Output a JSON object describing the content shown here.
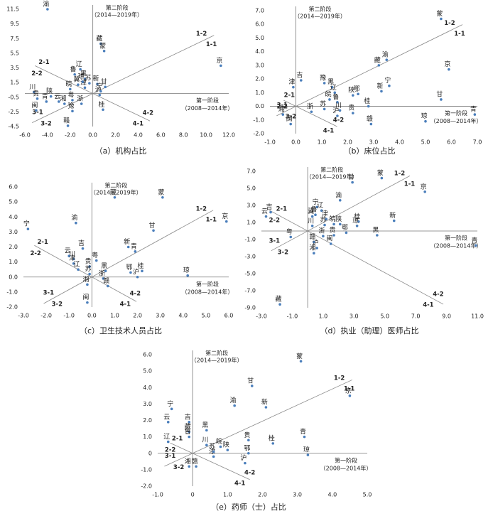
{
  "chart_data": [
    {
      "type": "scatter",
      "caption": "（a）机构占比",
      "xlabel": "第一阶段",
      "xlabel_note": "（2008—2014年）",
      "ylabel": "第二阶段",
      "ylabel_note": "（2014—2019年）",
      "region_labels": [
        "1-1",
        "1-2",
        "2-1",
        "2-2",
        "3-1",
        "3-2",
        "4-1",
        "4-2"
      ],
      "color": "#4a7ebb",
      "labels": [
        "渝",
        "藏",
        "蒙",
        "京",
        "辽",
        "鲁",
        "黑",
        "苏",
        "新",
        "冀",
        "皖",
        "津",
        "甘",
        "宁",
        "沪",
        "川",
        "贵",
        "陕",
        "云",
        "湘",
        "闽",
        "粤",
        "浙",
        "青",
        "豫",
        "桂",
        "赣",
        "琼"
      ],
      "x": [
        -4.0,
        0.7,
        1.0,
        11.3,
        -1.1,
        -1.6,
        -0.7,
        -0.3,
        0.4,
        -1.3,
        -2.0,
        -0.7,
        1.1,
        0.7,
        0.6,
        -5.2,
        -4.9,
        -3.7,
        -3.0,
        -2.5,
        -5.0,
        -1.8,
        -1.0,
        -4.1,
        -1.8,
        0.9,
        -2.2,
        -0.9
      ],
      "y": [
        11.5,
        6.8,
        5.8,
        3.8,
        3.3,
        2.6,
        2.0,
        1.4,
        1.3,
        1.2,
        0.6,
        0.8,
        0.9,
        0.3,
        -0.2,
        0.2,
        -0.7,
        -0.4,
        -1.1,
        -1.4,
        -2.3,
        -0.9,
        -1.4,
        -1.1,
        -2.4,
        -2.2,
        -4.4,
        1.6
      ],
      "xlim": [
        -6,
        12
      ],
      "ylim": [
        -4.5,
        11.5
      ],
      "xticks": [
        {
          "value": -6,
          "label": "-6.0"
        },
        {
          "value": -4,
          "label": "-4.0"
        },
        {
          "value": -2,
          "label": "-2.0"
        },
        {
          "value": 0,
          "label": "0.0"
        },
        {
          "value": 2,
          "label": "2.0"
        },
        {
          "value": 4,
          "label": "4.0"
        },
        {
          "value": 6,
          "label": "6.0"
        },
        {
          "value": 8,
          "label": "8.0"
        },
        {
          "value": 10,
          "label": "10.0"
        },
        {
          "value": 12,
          "label": "12.0"
        }
      ],
      "yticks": [
        -4.5,
        -2.5,
        -0.5,
        1.5,
        3.5,
        5.5,
        7.5,
        9.5,
        11.5
      ]
    },
    {
      "type": "scatter",
      "caption": "（b）床位占比",
      "xlabel": "第一阶段",
      "xlabel_note": "（2008—2014年）",
      "ylabel": "第二阶段",
      "ylabel_note": "（2014—2019年）",
      "region_labels": [
        "1-1",
        "1-2",
        "2-1",
        "2-2",
        "3-1",
        "3-2",
        "4-1",
        "4-2"
      ],
      "color": "#4a7ebb",
      "labels": [
        "蒙",
        "京",
        "渝",
        "藏",
        "宁",
        "新",
        "吉",
        "津",
        "黑",
        "豫",
        "辽",
        "鲁",
        "皖",
        "鄂",
        "陕",
        "苏",
        "湘",
        "闽",
        "甘",
        "桂",
        "青",
        "琼",
        "赣",
        "贵",
        "沪",
        "川",
        "浙"
      ],
      "x": [
        5.6,
        5.9,
        3.5,
        3.2,
        3.6,
        3.3,
        0.2,
        -0.1,
        1.4,
        1.1,
        1.5,
        1.6,
        1.3,
        2.4,
        2.2,
        1.1,
        -0.5,
        -0.2,
        5.6,
        2.8,
        6.9,
        5.0,
        2.9,
        2.2,
        1.6,
        1.7,
        0.6
      ],
      "y": [
        6.4,
        2.7,
        3.4,
        3.0,
        1.5,
        1.1,
        1.9,
        1.4,
        1.4,
        1.7,
        1.0,
        0.3,
        0.5,
        0.9,
        0.8,
        -0.2,
        -0.6,
        -1.3,
        0.5,
        0.0,
        -0.6,
        -1.1,
        -1.3,
        -0.5,
        -0.7,
        -0.3,
        -0.4
      ],
      "xlim": [
        -1,
        7
      ],
      "ylim": [
        -2,
        7
      ],
      "xticks": [
        {
          "value": -1,
          "label": "-1.0"
        },
        {
          "value": 0,
          "label": "0.0"
        },
        {
          "value": 1,
          "label": "1.0"
        },
        {
          "value": 2,
          "label": "2.0"
        },
        {
          "value": 3,
          "label": "3.0"
        },
        {
          "value": 4,
          "label": "4.0"
        },
        {
          "value": 5,
          "label": "5.0"
        },
        {
          "value": 6,
          "label": "6.0"
        },
        {
          "value": 7,
          "label": "7.0"
        }
      ],
      "yticks": [
        {
          "value": -2,
          "label": "-2.0"
        },
        {
          "value": -1,
          "label": "-1.0"
        },
        {
          "value": 0,
          "label": "0.0"
        },
        {
          "value": 1,
          "label": "1.0"
        },
        {
          "value": 2,
          "label": "2.0"
        },
        {
          "value": 3,
          "label": "3.0"
        },
        {
          "value": 4,
          "label": "4.0"
        },
        {
          "value": 5,
          "label": "5.0"
        },
        {
          "value": 6,
          "label": "6.0"
        },
        {
          "value": 7,
          "label": "7.0"
        }
      ]
    },
    {
      "type": "scatter",
      "caption": "（c）卫生技术人员占比",
      "xlabel": "第一阶段",
      "xlabel_note": "（2008—2014年）",
      "ylabel": "第二阶段",
      "ylabel_note": "（2014—2019年）",
      "region_labels": [
        "1-1",
        "1-2",
        "2-1",
        "2-2",
        "3-1",
        "3-2",
        "4-1",
        "4-2"
      ],
      "color": "#4a7ebb",
      "labels": [
        "藏",
        "蒙",
        "京",
        "甘",
        "渝",
        "宁",
        "新",
        "青",
        "吉",
        "川",
        "云",
        "津",
        "贵",
        "粤",
        "辽",
        "黑",
        "鄂",
        "桂",
        "沪",
        "琼",
        "苏",
        "湘",
        "闽",
        "浙",
        "赣"
      ],
      "x": [
        1.0,
        3.1,
        5.9,
        2.7,
        -0.7,
        -2.8,
        1.6,
        1.9,
        -0.4,
        -0.8,
        -1.0,
        -0.8,
        -0.1,
        0.2,
        -0.6,
        0.6,
        1.7,
        2.2,
        2.0,
        4.2,
        -0.1,
        -0.2,
        -0.2,
        0.5,
        0.7
      ],
      "y": [
        5.3,
        5.3,
        3.7,
        3.1,
        3.6,
        3.2,
        2.0,
        1.7,
        1.9,
        1.2,
        1.4,
        0.9,
        0.7,
        1.1,
        0.5,
        0.4,
        0.3,
        0.4,
        0.0,
        0.1,
        0.2,
        -0.5,
        -1.7,
        -0.1,
        -0.6
      ],
      "xlim": [
        -3,
        6
      ],
      "ylim": [
        -2,
        6
      ],
      "xticks": [
        {
          "value": -3,
          "label": "-3.0"
        },
        {
          "value": -2,
          "label": "-2.0"
        },
        {
          "value": -1,
          "label": "-1.0"
        },
        {
          "value": 0,
          "label": "0.0"
        },
        {
          "value": 1,
          "label": "1.0"
        },
        {
          "value": 2,
          "label": "2.0"
        },
        {
          "value": 3,
          "label": "3.0"
        },
        {
          "value": 4,
          "label": "4.0"
        },
        {
          "value": 5,
          "label": "5.0"
        },
        {
          "value": 6,
          "label": "6.0"
        }
      ],
      "yticks": [
        {
          "value": -2,
          "label": "-2.0"
        },
        {
          "value": -1,
          "label": "-1.0"
        },
        {
          "value": 0,
          "label": "0.0"
        },
        {
          "value": 1,
          "label": "1.0"
        },
        {
          "value": 2,
          "label": "2.0"
        },
        {
          "value": 3,
          "label": "3.0"
        },
        {
          "value": 4,
          "label": "4.0"
        },
        {
          "value": 5,
          "label": "5.0"
        },
        {
          "value": 6,
          "label": "6.0"
        }
      ]
    },
    {
      "type": "scatter",
      "caption": "（d）执业（助理）医师占比",
      "xlabel": "第一阶段",
      "xlabel_note": "（2008—2014年）",
      "ylabel": "第二阶段",
      "ylabel_note": "（2014—2019年）",
      "region_labels": [
        "1-1",
        "1-2",
        "2-1",
        "2-2",
        "3-1",
        "3-2",
        "4-1",
        "4-2"
      ],
      "color": "#4a7ebb",
      "labels": [
        "甘",
        "蒙",
        "京",
        "渝",
        "宁",
        "辽",
        "吉",
        "云",
        "鲁",
        "津",
        "皖",
        "陕",
        "桂",
        "川",
        "新",
        "黑",
        "青",
        "粤",
        "贵",
        "鄂",
        "赣",
        "沪",
        "湘",
        "闽",
        "藏",
        "苏",
        "浙",
        "冀",
        "琼"
      ],
      "x": [
        2.9,
        4.8,
        7.6,
        2.1,
        0.6,
        0.9,
        -2.4,
        -2.7,
        0.5,
        1.2,
        1.7,
        2.1,
        3.3,
        0.3,
        5.6,
        4.5,
        10.9,
        -1.1,
        1.7,
        2.5,
        0.4,
        0.6,
        0.4,
        1.5,
        -1.8,
        1.1,
        1.0,
        0.3,
        3.2
      ],
      "y": [
        5.7,
        6.2,
        4.6,
        3.6,
        2.8,
        2.4,
        2.2,
        1.7,
        1.9,
        1.4,
        0.8,
        0.8,
        1.1,
        0.6,
        1.2,
        -0.5,
        -1.7,
        -0.7,
        -0.5,
        -0.2,
        -1.3,
        -2.0,
        -2.6,
        -1.5,
        -8.6,
        0.7,
        -0.6,
        1.7,
        0.6
      ],
      "xlim": [
        -3,
        11
      ],
      "ylim": [
        -9,
        7
      ],
      "xticks": [
        {
          "value": -3,
          "label": "-3.0"
        },
        {
          "value": -1,
          "label": "-1.0"
        },
        {
          "value": 1,
          "label": "1.0"
        },
        {
          "value": 3,
          "label": "3.0"
        },
        {
          "value": 5,
          "label": "5.0"
        },
        {
          "value": 7,
          "label": "7.0"
        },
        {
          "value": 9,
          "label": "9.0"
        },
        {
          "value": 11,
          "label": "11.0"
        }
      ],
      "yticks": [
        {
          "value": -9,
          "label": "-9.0"
        },
        {
          "value": -7,
          "label": "-7.0"
        },
        {
          "value": -5,
          "label": "-5.0"
        },
        {
          "value": -3,
          "label": "-3.0"
        },
        {
          "value": -1,
          "label": "-1.0"
        },
        {
          "value": 1,
          "label": "1.0"
        },
        {
          "value": 3,
          "label": "3.0"
        },
        {
          "value": 5,
          "label": "5.0"
        },
        {
          "value": 7,
          "label": "7.0"
        }
      ]
    },
    {
      "type": "scatter",
      "caption": "（e）药师（士）占比",
      "xlabel": "第一阶段",
      "xlabel_note": "（2008—2014年）",
      "ylabel": "第二阶段",
      "ylabel_note": "（2014—2019年）",
      "region_labels": [
        "1-1",
        "1-2",
        "2-1",
        "2-2",
        "3-1",
        "3-2",
        "4-1",
        "4-2"
      ],
      "color": "#4a7ebb",
      "labels": [
        "蒙",
        "甘",
        "京",
        "渝",
        "新",
        "宁",
        "云",
        "吉",
        "黑",
        "藏",
        "青",
        "贵",
        "桂",
        "鲁",
        "辽",
        "皖",
        "陕",
        "川",
        "湘",
        "赣",
        "津",
        "苏",
        "鄂",
        "琼",
        "沪"
      ],
      "x": [
        3.1,
        1.7,
        4.5,
        1.2,
        2.1,
        -0.6,
        -0.7,
        -0.1,
        0.4,
        -0.1,
        3.2,
        1.6,
        2.3,
        -0.1,
        -0.7,
        0.8,
        1.0,
        0.4,
        -0.1,
        0.1,
        0.6,
        0.6,
        1.6,
        3.3,
        1.5
      ],
      "y": [
        5.6,
        4.1,
        3.5,
        2.9,
        2.8,
        2.7,
        1.9,
        1.9,
        1.4,
        1.3,
        1.0,
        0.8,
        0.6,
        1.0,
        0.7,
        0.4,
        0.2,
        0.5,
        -0.8,
        -0.8,
        -0.2,
        0.1,
        0.0,
        -0.1,
        -0.6
      ],
      "xlim": [
        -1,
        5
      ],
      "ylim": [
        -2,
        6
      ],
      "xticks": [
        {
          "value": -1,
          "label": "-1.0"
        },
        {
          "value": 0,
          "label": "0"
        },
        {
          "value": 1,
          "label": "1.0"
        },
        {
          "value": 2,
          "label": "2.0"
        },
        {
          "value": 3,
          "label": "3.0"
        },
        {
          "value": 4,
          "label": "4.0"
        },
        {
          "value": 5,
          "label": "5.0"
        }
      ],
      "yticks": [
        {
          "value": -2,
          "label": "-2.0"
        },
        {
          "value": -1,
          "label": "-1.0"
        },
        {
          "value": 0,
          "label": "0"
        },
        {
          "value": 1,
          "label": "1.0"
        },
        {
          "value": 2,
          "label": "2.0"
        },
        {
          "value": 3,
          "label": "3.0"
        },
        {
          "value": 4,
          "label": "4.0"
        },
        {
          "value": 5,
          "label": "5.0"
        },
        {
          "value": 6,
          "label": "6.0"
        }
      ]
    }
  ]
}
